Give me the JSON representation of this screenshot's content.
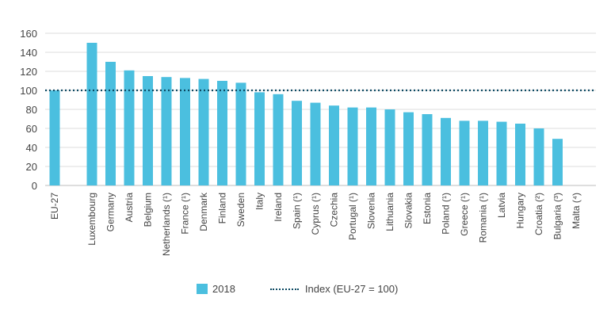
{
  "chart_data": {
    "type": "bar",
    "categories": [
      "EU-27",
      "",
      "Luxembourg",
      "Germany",
      "Austria",
      "Belgium",
      "Netherlands (¹)",
      "France (¹)",
      "Denmark",
      "Finland",
      "Sweden",
      "Italy",
      "Ireland",
      "Spain (¹)",
      "Cyprus (¹)",
      "Czechia",
      "Portugal (¹)",
      "Slovenia",
      "Lithuania",
      "Slovakia",
      "Estonia",
      "Poland (¹)",
      "Greece (¹)",
      "Romania (¹)",
      "Latvia",
      "Hungary",
      "Croatia (²)",
      "Bulgaria (³)",
      "Malta (⁴)"
    ],
    "series": [
      {
        "name": "2018",
        "color": "#4bbfdf",
        "values": [
          100,
          null,
          150,
          130,
          121,
          115,
          114,
          113,
          112,
          110,
          108,
          98,
          96,
          89,
          87,
          84,
          82,
          82,
          80,
          77,
          75,
          71,
          68,
          68,
          67,
          65,
          60,
          49,
          null
        ]
      }
    ],
    "reference_line": {
      "name": "Index (EU-27 = 100)",
      "value": 100,
      "color": "#0d4a63",
      "style": "dotted"
    },
    "y_ticks": [
      0,
      20,
      40,
      60,
      80,
      100,
      120,
      140,
      160
    ],
    "ylim": [
      0,
      160
    ],
    "title": "",
    "xlabel": "",
    "ylabel": "",
    "grid": true,
    "legend_position": "bottom"
  }
}
